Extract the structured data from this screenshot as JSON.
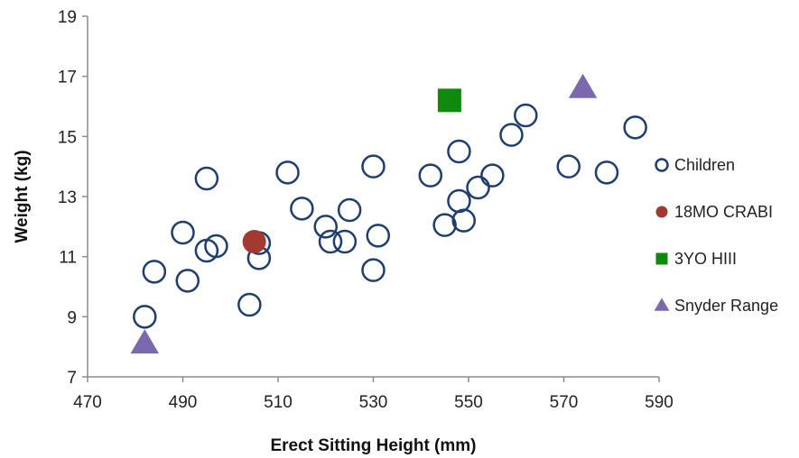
{
  "chart_data": {
    "type": "scatter",
    "title": "",
    "xlabel": "Erect Sitting Height (mm)",
    "ylabel": "Weight (kg)",
    "xlim": [
      470,
      590
    ],
    "ylim": [
      7,
      19
    ],
    "xticks": [
      470,
      490,
      510,
      530,
      550,
      570,
      590
    ],
    "yticks": [
      7,
      9,
      11,
      13,
      15,
      17,
      19
    ],
    "grid": false,
    "legend_position": "right",
    "series": [
      {
        "name": "Children",
        "marker": "open-circle",
        "color": "#1f3e6e",
        "points": [
          [
            482,
            9.0
          ],
          [
            484,
            10.5
          ],
          [
            490,
            11.8
          ],
          [
            491,
            10.2
          ],
          [
            495,
            13.6
          ],
          [
            495,
            11.2
          ],
          [
            497,
            11.35
          ],
          [
            504,
            9.4
          ],
          [
            506,
            11.45
          ],
          [
            506,
            10.95
          ],
          [
            512,
            13.8
          ],
          [
            515,
            12.6
          ],
          [
            520,
            12.0
          ],
          [
            521,
            11.5
          ],
          [
            524,
            11.5
          ],
          [
            525,
            12.55
          ],
          [
            530,
            14.0
          ],
          [
            530,
            10.55
          ],
          [
            531,
            11.7
          ],
          [
            542,
            13.7
          ],
          [
            545,
            12.05
          ],
          [
            548,
            14.5
          ],
          [
            548,
            12.85
          ],
          [
            549,
            12.2
          ],
          [
            552,
            13.3
          ],
          [
            555,
            13.7
          ],
          [
            559,
            15.05
          ],
          [
            562,
            15.7
          ],
          [
            571,
            14.0
          ],
          [
            579,
            13.8
          ],
          [
            585,
            15.3
          ]
        ]
      },
      {
        "name": "18MO CRABI",
        "marker": "filled-circle",
        "color": "#a23a32",
        "points": [
          [
            505,
            11.5
          ]
        ]
      },
      {
        "name": "3YO HIII",
        "marker": "filled-square",
        "color": "#0f8a0f",
        "points": [
          [
            546,
            16.2
          ]
        ]
      },
      {
        "name": "Snyder Range",
        "marker": "filled-triangle",
        "color": "#7b68ae",
        "points": [
          [
            482,
            8.1
          ],
          [
            574,
            16.6
          ]
        ]
      }
    ]
  }
}
